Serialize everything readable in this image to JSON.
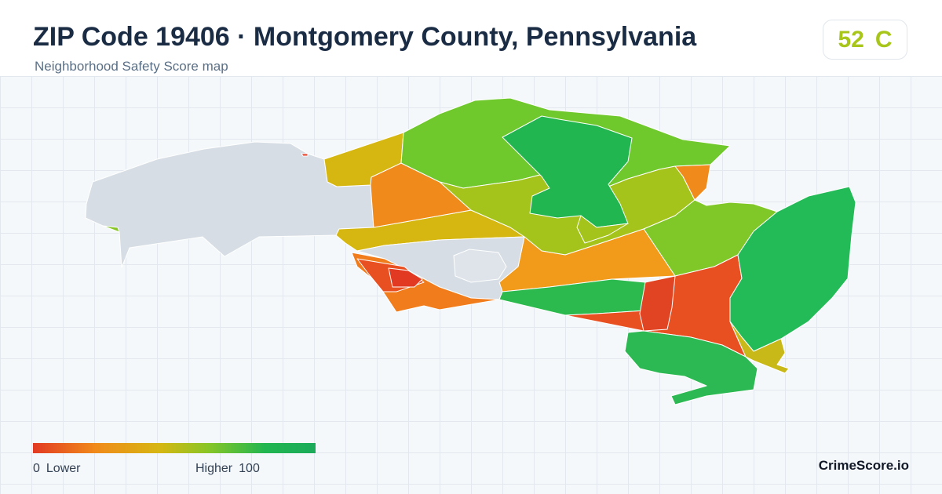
{
  "header": {
    "title": "ZIP Code 19406 · Montgomery County, Pennsylvania",
    "subtitle": "Neighborhood Safety Score map"
  },
  "score": {
    "value": "52",
    "grade": "C",
    "color": "#a8c61a"
  },
  "legend": {
    "min_value": "0",
    "min_label": "Lower",
    "max_label": "Higher",
    "max_value": "100",
    "gradient_colors": [
      "#e23a22",
      "#f08a1a",
      "#d6b712",
      "#88c626",
      "#22b650",
      "#1bab5a"
    ]
  },
  "map": {
    "no_data_color": "#d6dde4",
    "areas": [
      {
        "name": "west-no-data-area",
        "score_band": "no-data"
      },
      {
        "name": "central-no-data-area",
        "score_band": "no-data"
      },
      {
        "name": "inner-no-data-area",
        "score_band": "no-data"
      },
      {
        "name": "northwest-gold-area",
        "score_band": "medium"
      },
      {
        "name": "northwest-orange-area",
        "score_band": "medium-low"
      },
      {
        "name": "north-green-area",
        "score_band": "medium-high"
      },
      {
        "name": "north-dark-green-area",
        "score_band": "high"
      },
      {
        "name": "center-olive-area",
        "score_band": "medium"
      },
      {
        "name": "east-green-area",
        "score_band": "high"
      },
      {
        "name": "southwest-red-area",
        "score_band": "low"
      },
      {
        "name": "south-red-area",
        "score_band": "low"
      },
      {
        "name": "southeast-green-area",
        "score_band": "high"
      }
    ]
  },
  "brand": "CrimeScore.io"
}
